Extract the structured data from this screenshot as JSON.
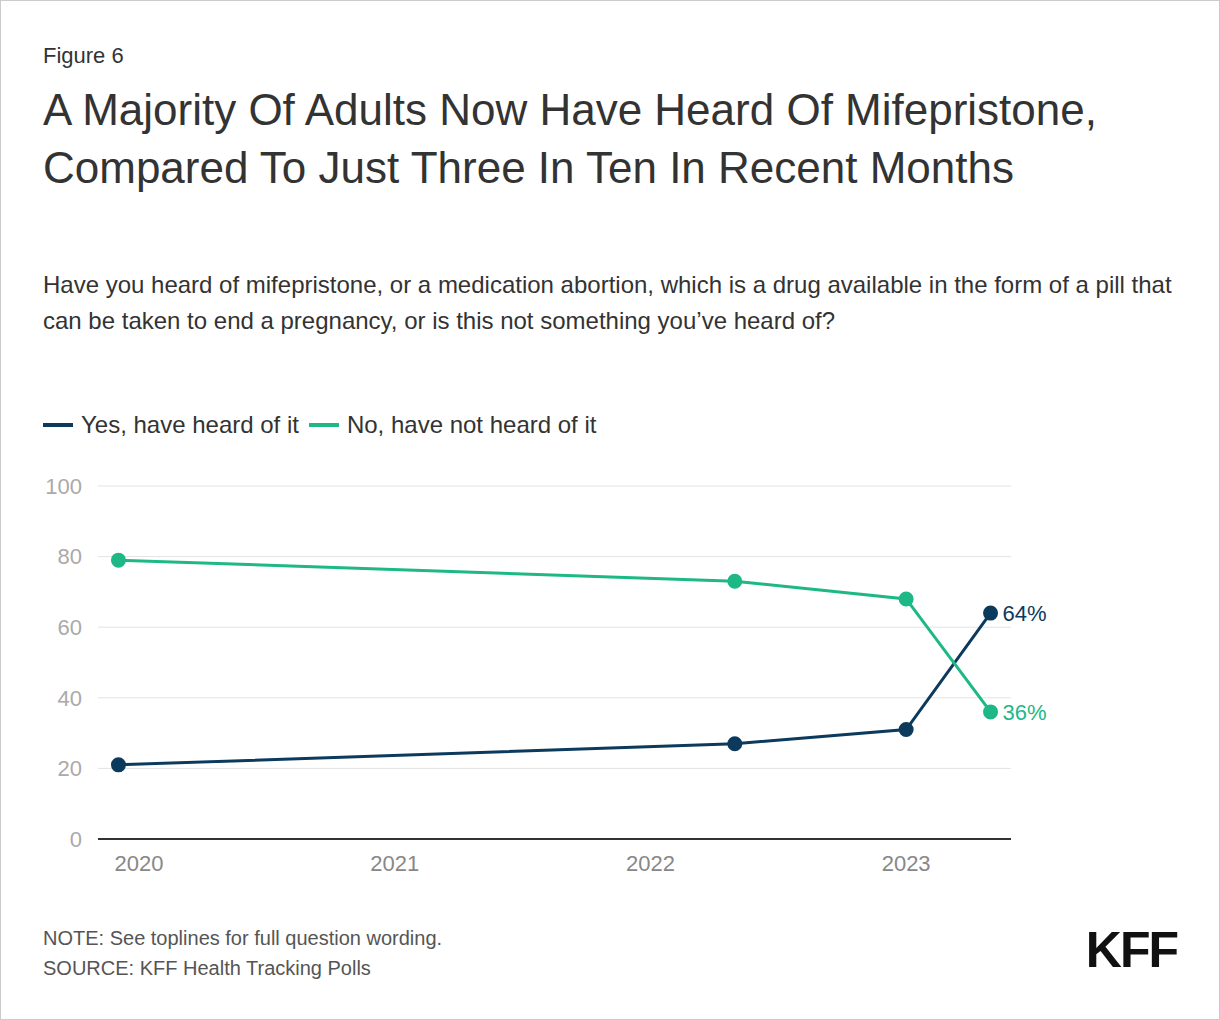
{
  "chart_data": {
    "type": "line",
    "figure_label": "Figure 6",
    "title": "A Majority Of Adults Now Have Heard Of Mifepristone, Compared To Just Three In Ten In Recent Months",
    "subtitle": "Have you heard of mifepristone, or a medication abortion, which is a drug available in the form of a pill that can be taken to end a pregnancy, or is this not something you’ve heard of?",
    "x": [
      2019.92,
      2022.33,
      2023.0,
      2023.33
    ],
    "series": [
      {
        "name": "Yes, have heard of it",
        "color": "#0b3a5c",
        "values": [
          21,
          27,
          31,
          64
        ],
        "value_labels": [
          null,
          null,
          null,
          "64%"
        ],
        "marker": "circle"
      },
      {
        "name": "No, have not heard of it",
        "color": "#1db886",
        "values": [
          79,
          73,
          68,
          36
        ],
        "value_labels": [
          null,
          null,
          null,
          "36%"
        ],
        "marker": "circle"
      }
    ],
    "xlim": [
      2019.84,
      2023.41
    ],
    "xticks": [
      2020,
      2021,
      2022,
      2023
    ],
    "ylim": [
      0,
      100
    ],
    "yticks": [
      0,
      20,
      40,
      60,
      80,
      100
    ],
    "grid": true,
    "legend": "top",
    "note": "NOTE: See toplines for full question wording.",
    "source": "SOURCE: KFF Health Tracking Polls",
    "logo": "KFF"
  }
}
